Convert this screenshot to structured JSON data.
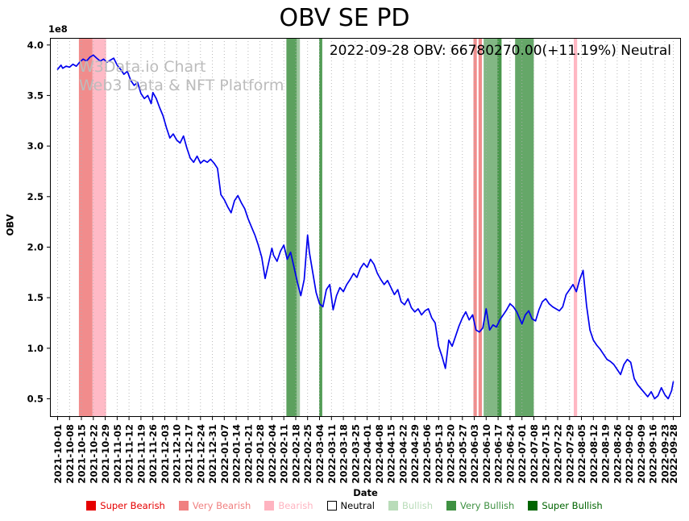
{
  "watermark": {
    "line1": "W3Data.io Chart",
    "line2": "Web3 Data & NFT Platform"
  },
  "chart_data": {
    "type": "line",
    "title": "OBV SE PD",
    "annotation": "2022-09-28 OBV: 66780270.00(+11.19%) Neutral",
    "xlabel": "Date",
    "ylabel": "OBV",
    "y_offset_label": "1e8",
    "y_unit": 100000000,
    "ylim": [
      0.32,
      4.07
    ],
    "yticks": [
      0.5,
      1.0,
      1.5,
      2.0,
      2.5,
      3.0,
      3.5,
      4.0
    ],
    "xlim_days": [
      -4.5,
      366.5
    ],
    "x_start_date": "2021-10-01",
    "x_end_date": "2022-09-28",
    "grid": {
      "vertical_dotted": true,
      "color": "#b0b0b0"
    },
    "line_color": "#0000ee",
    "last_value": 66780270.0,
    "last_change_pct": 11.19,
    "last_signal": "Neutral",
    "xtick_days": [
      0,
      7,
      14,
      21,
      28,
      35,
      42,
      49,
      56,
      63,
      70,
      77,
      84,
      91,
      98,
      105,
      112,
      119,
      126,
      133,
      140,
      147,
      154,
      161,
      168,
      175,
      182,
      189,
      196,
      203,
      210,
      217,
      224,
      231,
      238,
      245,
      252,
      259,
      266,
      273,
      280,
      287,
      294,
      301,
      308,
      315,
      322,
      329,
      336,
      343,
      350,
      357,
      362
    ],
    "xtick_labels": [
      "2021-10-01",
      "2021-10-08",
      "2021-10-15",
      "2021-10-22",
      "2021-10-29",
      "2021-11-05",
      "2021-11-12",
      "2021-11-19",
      "2021-11-26",
      "2021-12-03",
      "2021-12-10",
      "2021-12-17",
      "2021-12-24",
      "2021-12-31",
      "2022-01-07",
      "2022-01-14",
      "2022-01-21",
      "2022-01-28",
      "2022-02-04",
      "2022-02-11",
      "2022-02-18",
      "2022-02-25",
      "2022-03-04",
      "2022-03-11",
      "2022-03-18",
      "2022-03-25",
      "2022-04-01",
      "2022-04-08",
      "2022-04-15",
      "2022-04-22",
      "2022-04-29",
      "2022-05-06",
      "2022-05-13",
      "2022-05-20",
      "2022-05-27",
      "2022-06-03",
      "2022-06-10",
      "2022-06-17",
      "2022-06-24",
      "2022-07-01",
      "2022-07-08",
      "2022-07-15",
      "2022-07-22",
      "2022-07-29",
      "2022-08-05",
      "2022-08-12",
      "2022-08-19",
      "2022-08-26",
      "2022-09-02",
      "2022-09-09",
      "2022-09-16",
      "2022-09-23",
      "2022-09-28"
    ],
    "level_colors": {
      "super_bearish": "#e50000",
      "very_bearish": "#f08080",
      "bearish": "#ffb3c0",
      "neutral": "#ffffff",
      "bullish": "#b9dcb9",
      "very_bullish": "#3f9142",
      "super_bullish": "#006400"
    },
    "bands": [
      {
        "start": 12.5,
        "end": 20.5,
        "level": "very_bearish",
        "alpha": 0.9
      },
      {
        "start": 20.5,
        "end": 28.5,
        "level": "bearish",
        "alpha": 0.9
      },
      {
        "start": 134.5,
        "end": 140.5,
        "level": "very_bullish",
        "alpha": 0.85
      },
      {
        "start": 140.5,
        "end": 142.5,
        "level": "very_bullish",
        "alpha": 0.5
      },
      {
        "start": 153.8,
        "end": 155.6,
        "level": "very_bullish",
        "alpha": 0.9
      },
      {
        "start": 244.5,
        "end": 246.5,
        "level": "very_bearish",
        "alpha": 0.9
      },
      {
        "start": 247.5,
        "end": 249.5,
        "level": "very_bearish",
        "alpha": 0.9
      },
      {
        "start": 250.5,
        "end": 258.5,
        "level": "very_bullish",
        "alpha": 0.65
      },
      {
        "start": 258.5,
        "end": 261.0,
        "level": "very_bullish",
        "alpha": 0.95
      },
      {
        "start": 269.0,
        "end": 280.0,
        "level": "very_bullish",
        "alpha": 0.8
      },
      {
        "start": 303.5,
        "end": 305.5,
        "level": "bearish",
        "alpha": 0.95
      }
    ],
    "series": [
      {
        "name": "OBV",
        "points": [
          [
            0,
            3.76
          ],
          [
            2,
            3.8
          ],
          [
            3,
            3.77
          ],
          [
            5,
            3.79
          ],
          [
            7,
            3.78
          ],
          [
            9,
            3.81
          ],
          [
            11,
            3.79
          ],
          [
            13,
            3.83
          ],
          [
            15,
            3.86
          ],
          [
            17,
            3.84
          ],
          [
            19,
            3.88
          ],
          [
            21,
            3.9
          ],
          [
            23,
            3.87
          ],
          [
            25,
            3.84
          ],
          [
            27,
            3.86
          ],
          [
            29,
            3.83
          ],
          [
            31,
            3.85
          ],
          [
            33,
            3.87
          ],
          [
            35,
            3.8
          ],
          [
            37,
            3.76
          ],
          [
            39,
            3.71
          ],
          [
            41,
            3.74
          ],
          [
            43,
            3.65
          ],
          [
            45,
            3.6
          ],
          [
            47,
            3.63
          ],
          [
            49,
            3.52
          ],
          [
            51,
            3.47
          ],
          [
            53,
            3.5
          ],
          [
            55,
            3.42
          ],
          [
            56,
            3.53
          ],
          [
            58,
            3.47
          ],
          [
            60,
            3.38
          ],
          [
            62,
            3.3
          ],
          [
            64,
            3.18
          ],
          [
            66,
            3.08
          ],
          [
            68,
            3.12
          ],
          [
            70,
            3.06
          ],
          [
            72,
            3.03
          ],
          [
            74,
            3.1
          ],
          [
            76,
            2.98
          ],
          [
            78,
            2.88
          ],
          [
            80,
            2.84
          ],
          [
            82,
            2.9
          ],
          [
            84,
            2.83
          ],
          [
            86,
            2.86
          ],
          [
            88,
            2.84
          ],
          [
            90,
            2.87
          ],
          [
            92,
            2.83
          ],
          [
            94,
            2.78
          ],
          [
            96,
            2.52
          ],
          [
            98,
            2.47
          ],
          [
            100,
            2.4
          ],
          [
            102,
            2.34
          ],
          [
            104,
            2.46
          ],
          [
            106,
            2.51
          ],
          [
            108,
            2.44
          ],
          [
            110,
            2.38
          ],
          [
            112,
            2.28
          ],
          [
            114,
            2.2
          ],
          [
            116,
            2.12
          ],
          [
            118,
            2.02
          ],
          [
            120,
            1.9
          ],
          [
            122,
            1.69
          ],
          [
            124,
            1.84
          ],
          [
            126,
            1.99
          ],
          [
            127,
            1.92
          ],
          [
            129,
            1.86
          ],
          [
            131,
            1.96
          ],
          [
            133,
            2.02
          ],
          [
            135,
            1.88
          ],
          [
            137,
            1.95
          ],
          [
            139,
            1.8
          ],
          [
            141,
            1.65
          ],
          [
            143,
            1.52
          ],
          [
            145,
            1.68
          ],
          [
            147,
            2.12
          ],
          [
            148,
            1.95
          ],
          [
            150,
            1.75
          ],
          [
            152,
            1.55
          ],
          [
            154,
            1.44
          ],
          [
            156,
            1.41
          ],
          [
            158,
            1.58
          ],
          [
            160,
            1.63
          ],
          [
            162,
            1.38
          ],
          [
            164,
            1.52
          ],
          [
            166,
            1.6
          ],
          [
            168,
            1.56
          ],
          [
            170,
            1.63
          ],
          [
            172,
            1.68
          ],
          [
            174,
            1.74
          ],
          [
            176,
            1.7
          ],
          [
            178,
            1.79
          ],
          [
            180,
            1.84
          ],
          [
            182,
            1.8
          ],
          [
            184,
            1.88
          ],
          [
            186,
            1.83
          ],
          [
            188,
            1.74
          ],
          [
            190,
            1.68
          ],
          [
            192,
            1.63
          ],
          [
            194,
            1.67
          ],
          [
            196,
            1.6
          ],
          [
            198,
            1.53
          ],
          [
            200,
            1.58
          ],
          [
            202,
            1.46
          ],
          [
            204,
            1.43
          ],
          [
            206,
            1.49
          ],
          [
            208,
            1.4
          ],
          [
            210,
            1.36
          ],
          [
            212,
            1.39
          ],
          [
            214,
            1.33
          ],
          [
            216,
            1.37
          ],
          [
            218,
            1.39
          ],
          [
            220,
            1.3
          ],
          [
            222,
            1.25
          ],
          [
            224,
            1.02
          ],
          [
            226,
            0.92
          ],
          [
            228,
            0.8
          ],
          [
            230,
            1.08
          ],
          [
            232,
            1.02
          ],
          [
            234,
            1.12
          ],
          [
            236,
            1.22
          ],
          [
            238,
            1.3
          ],
          [
            240,
            1.36
          ],
          [
            242,
            1.28
          ],
          [
            244,
            1.33
          ],
          [
            246,
            1.18
          ],
          [
            248,
            1.16
          ],
          [
            250,
            1.2
          ],
          [
            252,
            1.39
          ],
          [
            254,
            1.18
          ],
          [
            256,
            1.23
          ],
          [
            258,
            1.21
          ],
          [
            260,
            1.28
          ],
          [
            262,
            1.33
          ],
          [
            264,
            1.38
          ],
          [
            266,
            1.44
          ],
          [
            268,
            1.41
          ],
          [
            270,
            1.36
          ],
          [
            272,
            1.28
          ],
          [
            273,
            1.24
          ],
          [
            275,
            1.33
          ],
          [
            277,
            1.37
          ],
          [
            279,
            1.29
          ],
          [
            281,
            1.27
          ],
          [
            283,
            1.38
          ],
          [
            285,
            1.46
          ],
          [
            287,
            1.49
          ],
          [
            289,
            1.44
          ],
          [
            291,
            1.41
          ],
          [
            293,
            1.39
          ],
          [
            295,
            1.37
          ],
          [
            297,
            1.41
          ],
          [
            299,
            1.53
          ],
          [
            301,
            1.58
          ],
          [
            303,
            1.63
          ],
          [
            305,
            1.56
          ],
          [
            307,
            1.68
          ],
          [
            309,
            1.77
          ],
          [
            311,
            1.42
          ],
          [
            313,
            1.18
          ],
          [
            315,
            1.08
          ],
          [
            317,
            1.03
          ],
          [
            319,
            0.99
          ],
          [
            321,
            0.94
          ],
          [
            323,
            0.89
          ],
          [
            325,
            0.87
          ],
          [
            327,
            0.84
          ],
          [
            329,
            0.79
          ],
          [
            331,
            0.74
          ],
          [
            333,
            0.84
          ],
          [
            335,
            0.89
          ],
          [
            337,
            0.86
          ],
          [
            339,
            0.7
          ],
          [
            341,
            0.64
          ],
          [
            343,
            0.6
          ],
          [
            345,
            0.56
          ],
          [
            347,
            0.52
          ],
          [
            349,
            0.57
          ],
          [
            351,
            0.5
          ],
          [
            353,
            0.53
          ],
          [
            355,
            0.61
          ],
          [
            357,
            0.54
          ],
          [
            359,
            0.5
          ],
          [
            361,
            0.58
          ],
          [
            362,
            0.6678
          ]
        ]
      }
    ],
    "legend": {
      "position": "lower center",
      "entries": [
        {
          "label": "Super Bearish",
          "fill": "#e50000",
          "text": "#e50000",
          "edge": "#e50000"
        },
        {
          "label": "Very Bearish",
          "fill": "#f08080",
          "text": "#f08080",
          "edge": "#f08080"
        },
        {
          "label": "Bearish",
          "fill": "#ffb3c0",
          "text": "#ffb3c0",
          "edge": "#ffb3c0"
        },
        {
          "label": "Neutral",
          "fill": "#ffffff",
          "text": "#000000",
          "edge": "#000000"
        },
        {
          "label": "Bullish",
          "fill": "#b9dcb9",
          "text": "#b9dcb9",
          "edge": "#b9dcb9"
        },
        {
          "label": "Very Bullish",
          "fill": "#3f9142",
          "text": "#3f9142",
          "edge": "#3f9142"
        },
        {
          "label": "Super Bullish",
          "fill": "#006400",
          "text": "#006400",
          "edge": "#006400"
        }
      ]
    }
  }
}
